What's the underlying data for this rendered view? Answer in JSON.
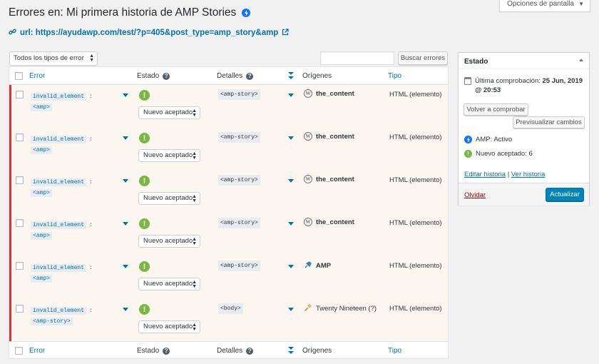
{
  "screen_options": {
    "label": "Opciones de pantalla"
  },
  "header": {
    "title": "Errores en: Mi primera historia de AMP Stories",
    "url": "url: https://ayudawp.com/test/?p=405&post_type=amp_story&amp"
  },
  "filters": {
    "type_select": "Todos los tipos de error",
    "search_value": "",
    "search_button": "Buscar errores"
  },
  "table": {
    "columns": {
      "error": "Error",
      "status": "Estado",
      "details": "Detalles",
      "origins": "Orígenes",
      "type": "Tipo"
    },
    "rows": [
      {
        "code": "invalid_element",
        "node": "<amp>",
        "status": "Nuevo aceptado",
        "detail": "<amp-story>",
        "origin": "the_content",
        "origin_icon": "wordpress-icon",
        "type": "HTML (elemento)"
      },
      {
        "code": "invalid_element",
        "node": "<amp>",
        "status": "Nuevo aceptado",
        "detail": "<amp-story>",
        "origin": "the_content",
        "origin_icon": "wordpress-icon",
        "type": "HTML (elemento)"
      },
      {
        "code": "invalid_element",
        "node": "<amp>",
        "status": "Nuevo aceptado",
        "detail": "<amp-story>",
        "origin": "the_content",
        "origin_icon": "wordpress-icon",
        "type": "HTML (elemento)"
      },
      {
        "code": "invalid_element",
        "node": "<amp>",
        "status": "Nuevo aceptado",
        "detail": "<amp-story>",
        "origin": "the_content",
        "origin_icon": "wordpress-icon",
        "type": "HTML (elemento)"
      },
      {
        "code": "invalid_element",
        "node": "<amp>",
        "status": "Nuevo aceptado",
        "detail": "<amp-story>",
        "origin": "AMP",
        "origin_icon": "plugin-icon",
        "type": "HTML (elemento)"
      },
      {
        "code": "invalid_element",
        "node": "<amp-story>",
        "status": "Nuevo aceptado",
        "detail": "<body>",
        "origin": "Twenty Nineteen (?)",
        "origin_icon": "theme-icon",
        "type": "HTML (elemento)"
      }
    ]
  },
  "sidebar": {
    "title": "Estado",
    "last_check_label": "Última comprobación:",
    "last_check_value": "25 Jun, 2019 @ 20:53",
    "recheck_button": "Volver a comprobar",
    "preview_button": "Previsualizar cambios",
    "amp_status": "AMP: Activo",
    "accepted_status": "Nuevo aceptado: 6",
    "edit_link": "Editar historia",
    "separator": "|",
    "view_link": "Ver historia",
    "trash_link": "Olvidar",
    "update_button": "Actualizar"
  },
  "colors": {
    "accent": "#0073aa",
    "error_border": "#dc3232",
    "row_bg": "#fcf6f1",
    "ok_green": "#7ab842",
    "amp_blue": "#0e73ff",
    "primary": "#0085ba"
  }
}
